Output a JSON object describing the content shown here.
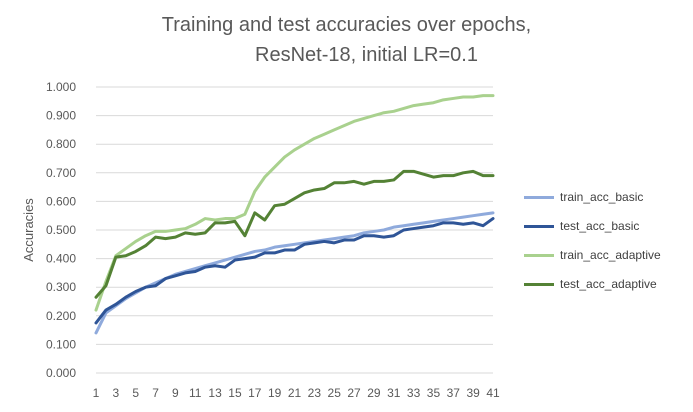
{
  "chart_data": {
    "type": "line",
    "title": "Training and test accuracies over epochs,",
    "subtitle": "ResNet-18, initial LR=0.1",
    "xlabel": "",
    "ylabel": "Accuracies",
    "ylim": [
      0,
      1.0
    ],
    "y_ticks": [
      "0.000",
      "0.100",
      "0.200",
      "0.300",
      "0.400",
      "0.500",
      "0.600",
      "0.700",
      "0.800",
      "0.900",
      "1.000"
    ],
    "x_tick_labels": [
      "1",
      "3",
      "5",
      "7",
      "9",
      "11",
      "13",
      "15",
      "17",
      "19",
      "21",
      "23",
      "25",
      "27",
      "29",
      "31",
      "33",
      "35",
      "37",
      "39",
      "41"
    ],
    "x": [
      1,
      2,
      3,
      4,
      5,
      6,
      7,
      8,
      9,
      10,
      11,
      12,
      13,
      14,
      15,
      16,
      17,
      18,
      19,
      20,
      21,
      22,
      23,
      24,
      25,
      26,
      27,
      28,
      29,
      30,
      31,
      32,
      33,
      34,
      35,
      36,
      37,
      38,
      39,
      40,
      41
    ],
    "grid": true,
    "legend_position": "right",
    "series": [
      {
        "name": "train_acc_basic",
        "color": "#8FAADC",
        "values": [
          0.14,
          0.21,
          0.235,
          0.26,
          0.28,
          0.3,
          0.315,
          0.33,
          0.345,
          0.355,
          0.365,
          0.375,
          0.385,
          0.395,
          0.405,
          0.415,
          0.425,
          0.43,
          0.44,
          0.445,
          0.45,
          0.455,
          0.46,
          0.465,
          0.47,
          0.475,
          0.48,
          0.49,
          0.495,
          0.5,
          0.51,
          0.515,
          0.52,
          0.525,
          0.53,
          0.535,
          0.54,
          0.545,
          0.55,
          0.555,
          0.56
        ]
      },
      {
        "name": "test_acc_basic",
        "color": "#2F5597",
        "values": [
          0.175,
          0.22,
          0.24,
          0.265,
          0.285,
          0.3,
          0.305,
          0.33,
          0.34,
          0.35,
          0.355,
          0.37,
          0.375,
          0.37,
          0.395,
          0.4,
          0.405,
          0.42,
          0.42,
          0.43,
          0.43,
          0.45,
          0.455,
          0.46,
          0.455,
          0.465,
          0.465,
          0.48,
          0.48,
          0.475,
          0.48,
          0.5,
          0.505,
          0.51,
          0.515,
          0.525,
          0.525,
          0.52,
          0.525,
          0.515,
          0.54
        ]
      },
      {
        "name": "train_acc_adaptive",
        "color": "#A9D18E",
        "values": [
          0.22,
          0.32,
          0.41,
          0.435,
          0.46,
          0.48,
          0.495,
          0.495,
          0.5,
          0.505,
          0.52,
          0.54,
          0.535,
          0.54,
          0.54,
          0.555,
          0.635,
          0.685,
          0.72,
          0.755,
          0.78,
          0.8,
          0.82,
          0.835,
          0.85,
          0.865,
          0.88,
          0.89,
          0.9,
          0.91,
          0.915,
          0.925,
          0.935,
          0.94,
          0.945,
          0.955,
          0.96,
          0.965,
          0.965,
          0.97,
          0.97
        ]
      },
      {
        "name": "test_acc_adaptive",
        "color": "#548235",
        "values": [
          0.265,
          0.305,
          0.405,
          0.41,
          0.425,
          0.445,
          0.475,
          0.47,
          0.475,
          0.49,
          0.485,
          0.49,
          0.525,
          0.525,
          0.53,
          0.48,
          0.56,
          0.535,
          0.585,
          0.59,
          0.61,
          0.63,
          0.64,
          0.645,
          0.665,
          0.665,
          0.67,
          0.66,
          0.67,
          0.67,
          0.675,
          0.705,
          0.705,
          0.695,
          0.685,
          0.69,
          0.69,
          0.7,
          0.705,
          0.69,
          0.69
        ]
      }
    ]
  }
}
